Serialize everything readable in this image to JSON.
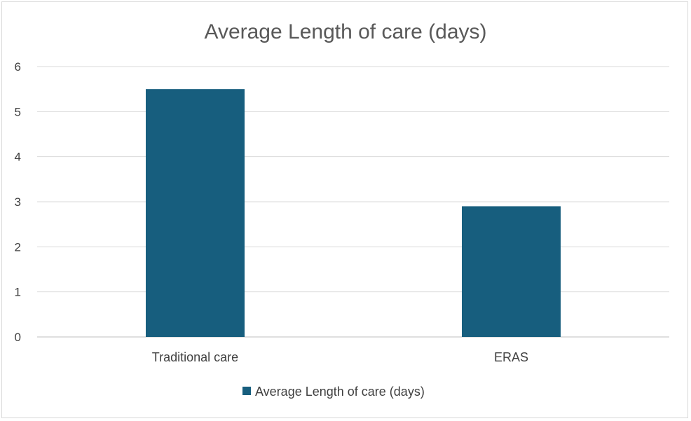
{
  "chart_data": {
    "type": "bar",
    "title": "Average Length of care (days)",
    "categories": [
      "Traditional care",
      "ERAS"
    ],
    "series": [
      {
        "name": "Average Length of care (days)",
        "values": [
          5.5,
          2.9
        ],
        "color": "#175e7e"
      }
    ],
    "ylim": [
      0,
      6
    ],
    "yticks": [
      0,
      1,
      2,
      3,
      4,
      5,
      6
    ],
    "ytick_labels": [
      "0",
      "1",
      "2",
      "3",
      "4",
      "5",
      "6"
    ],
    "grid": true,
    "legend": "bottom",
    "gridline_color": "#d9d9d9",
    "axis_color": "#bfbfbf"
  }
}
